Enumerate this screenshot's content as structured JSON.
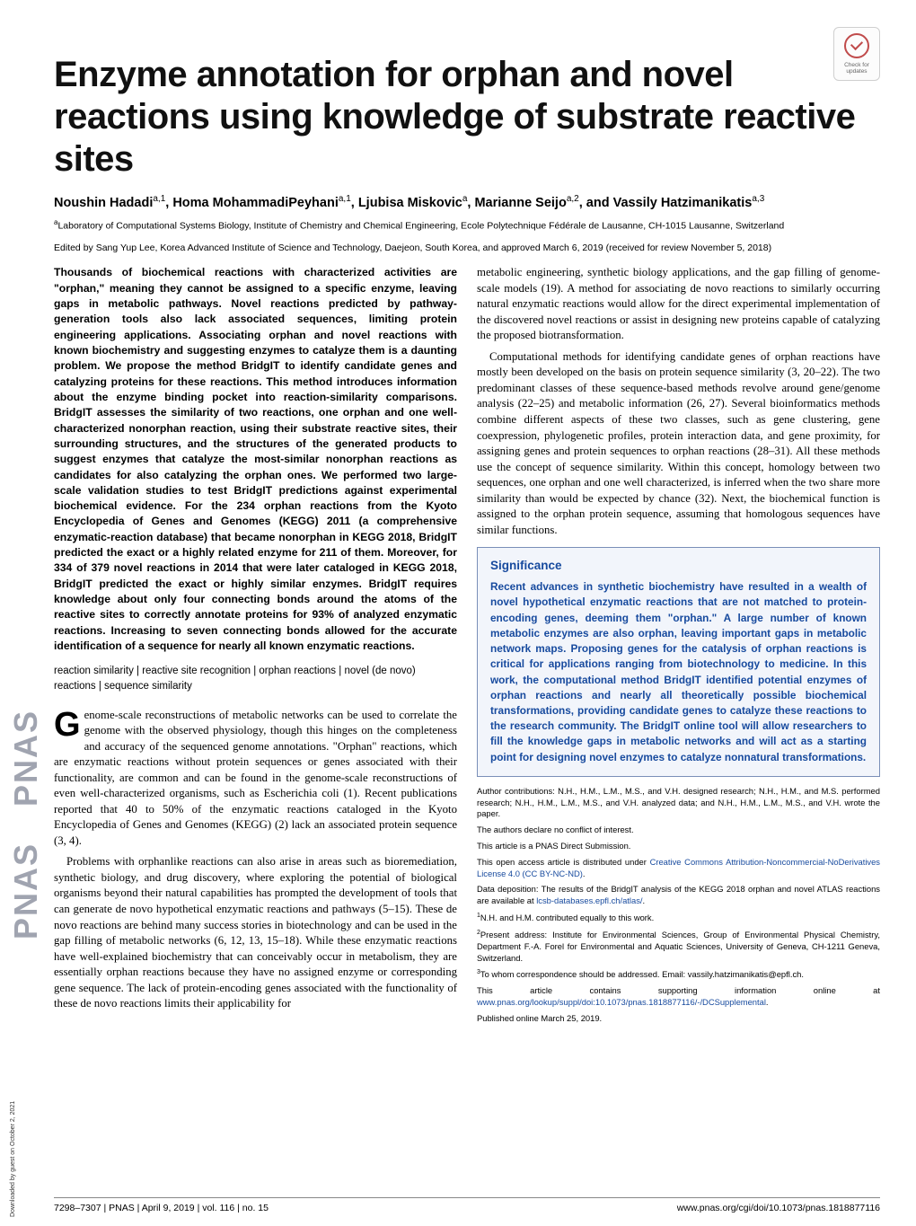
{
  "journal_vertical": "PNAS PNAS",
  "downloaded_note": "Downloaded by guest on October 2, 2021",
  "updates_badge": {
    "line1": "Check for",
    "line2": "updates"
  },
  "title": "Enzyme annotation for orphan and novel reactions using knowledge of substrate reactive sites",
  "authors_html": "Noushin Hadadi<sup>a,1</sup>, Homa MohammadiPeyhani<sup>a,1</sup>, Ljubisa Miskovic<sup>a</sup>, Marianne Seijo<sup>a,2</sup>, and Vassily Hatzimanikatis<sup>a,3</sup>",
  "affiliation_html": "<sup>a</sup>Laboratory of Computational Systems Biology, Institute of Chemistry and Chemical Engineering, Ecole Polytechnique Fédérale de Lausanne, CH-1015 Lausanne, Switzerland",
  "edited": "Edited by Sang Yup Lee, Korea Advanced Institute of Science and Technology, Daejeon, South Korea, and approved March 6, 2019 (received for review November 5, 2018)",
  "abstract": "Thousands of biochemical reactions with characterized activities are \"orphan,\" meaning they cannot be assigned to a specific enzyme, leaving gaps in metabolic pathways. Novel reactions predicted by pathway-generation tools also lack associated sequences, limiting protein engineering applications. Associating orphan and novel reactions with known biochemistry and suggesting enzymes to catalyze them is a daunting problem. We propose the method BridgIT to identify candidate genes and catalyzing proteins for these reactions. This method introduces information about the enzyme binding pocket into reaction-similarity comparisons. BridgIT assesses the similarity of two reactions, one orphan and one well-characterized nonorphan reaction, using their substrate reactive sites, their surrounding structures, and the structures of the generated products to suggest enzymes that catalyze the most-similar nonorphan reactions as candidates for also catalyzing the orphan ones. We performed two large-scale validation studies to test BridgIT predictions against experimental biochemical evidence. For the 234 orphan reactions from the Kyoto Encyclopedia of Genes and Genomes (KEGG) 2011 (a comprehensive enzymatic-reaction database) that became nonorphan in KEGG 2018, BridgIT predicted the exact or a highly related enzyme for 211 of them. Moreover, for 334 of 379 novel reactions in 2014 that were later cataloged in KEGG 2018, BridgIT predicted the exact or highly similar enzymes. BridgIT requires knowledge about only four connecting bonds around the atoms of the reactive sites to correctly annotate proteins for 93% of analyzed enzymatic reactions. Increasing to seven connecting bonds allowed for the accurate identification of a sequence for nearly all known enzymatic reactions.",
  "keywords": "reaction similarity | reactive site recognition | orphan reactions | novel (de novo) reactions | sequence similarity",
  "left_paras": [
    "enome-scale reconstructions of metabolic networks can be used to correlate the genome with the observed physiology, though this hinges on the completeness and accuracy of the sequenced genome annotations. \"Orphan\" reactions, which are enzymatic reactions without protein sequences or genes associated with their functionality, are common and can be found in the genome-scale reconstructions of even well-characterized organisms, such as Escherichia coli (1). Recent publications reported that 40 to 50% of the enzymatic reactions cataloged in the Kyoto Encyclopedia of Genes and Genomes (KEGG) (2) lack an associated protein sequence (3, 4).",
    "Problems with orphanlike reactions can also arise in areas such as bioremediation, synthetic biology, and drug discovery, where exploring the potential of biological organisms beyond their natural capabilities has prompted the development of tools that can generate de novo hypothetical enzymatic reactions and pathways (5–15). These de novo reactions are behind many success stories in biotechnology and can be used in the gap filling of metabolic networks (6, 12, 13, 15–18). While these enzymatic reactions have well-explained biochemistry that can conceivably occur in metabolism, they are essentially orphan reactions because they have no assigned enzyme or corresponding gene sequence. The lack of protein-encoding genes associated with the functionality of these de novo reactions limits their applicability for"
  ],
  "right_paras": [
    "metabolic engineering, synthetic biology applications, and the gap filling of genome-scale models (19). A method for associating de novo reactions to similarly occurring natural enzymatic reactions would allow for the direct experimental implementation of the discovered novel reactions or assist in designing new proteins capable of catalyzing the proposed biotransformation.",
    "Computational methods for identifying candidate genes of orphan reactions have mostly been developed on the basis on protein sequence similarity (3, 20–22). The two predominant classes of these sequence-based methods revolve around gene/genome analysis (22–25) and metabolic information (26, 27). Several bioinformatics methods combine different aspects of these two classes, such as gene clustering, gene coexpression, phylogenetic profiles, protein interaction data, and gene proximity, for assigning genes and protein sequences to orphan reactions (28–31). All these methods use the concept of sequence similarity. Within this concept, homology between two sequences, one orphan and one well characterized, is inferred when the two share more similarity than would be expected by chance (32). Next, the biochemical function is assigned to the orphan protein sequence, assuming that homologous sequences have similar functions."
  ],
  "significance": {
    "heading": "Significance",
    "body": "Recent advances in synthetic biochemistry have resulted in a wealth of novel hypothetical enzymatic reactions that are not matched to protein-encoding genes, deeming them \"orphan.\" A large number of known metabolic enzymes are also orphan, leaving important gaps in metabolic network maps. Proposing genes for the catalysis of orphan reactions is critical for applications ranging from biotechnology to medicine. In this work, the computational method BridgIT identified potential enzymes of orphan reactions and nearly all theoretically possible biochemical transformations, providing candidate genes to catalyze these reactions to the research community. The BridgIT online tool will allow researchers to fill the knowledge gaps in metabolic networks and will act as a starting point for designing novel enzymes to catalyze nonnatural transformations."
  },
  "footnotes": {
    "contrib": "Author contributions: N.H., H.M., L.M., M.S., and V.H. designed research; N.H., H.M., and M.S. performed research; N.H., H.M., L.M., M.S., and V.H. analyzed data; and N.H., H.M., L.M., M.S., and V.H. wrote the paper.",
    "coi": "The authors declare no conflict of interest.",
    "direct": "This article is a PNAS Direct Submission.",
    "license_pre": "This open access article is distributed under ",
    "license_link": "Creative Commons Attribution-Noncommercial-NoDerivatives License 4.0 (CC BY-NC-ND)",
    "license_post": ".",
    "datadep_pre": "Data deposition: The results of the BridgIT analysis of the KEGG 2018 orphan and novel ATLAS reactions are available at ",
    "datadep_link": "lcsb-databases.epfl.ch/atlas/",
    "datadep_post": ".",
    "equal": "N.H. and H.M. contributed equally to this work.",
    "present": "Present address: Institute for Environmental Sciences, Group of Environmental Physical Chemistry, Department F.-A. Forel for Environmental and Aquatic Sciences, University of Geneva, CH-1211 Geneva, Switzerland.",
    "corr": "To whom correspondence should be addressed. Email: vassily.hatzimanikatis@epfl.ch.",
    "supp_pre": "This article contains supporting information online at ",
    "supp_link": "www.pnas.org/lookup/suppl/doi:10.1073/pnas.1818877116/-/DCSupplemental",
    "supp_post": ".",
    "published": "Published online March 25, 2019."
  },
  "footer": {
    "left": "7298–7307  |  PNAS  |  April 9, 2019  |  vol. 116  |  no. 15",
    "right": "www.pnas.org/cgi/doi/10.1073/pnas.1818877116"
  },
  "colors": {
    "link": "#174a9e",
    "sig_border": "#7a8fb8",
    "sig_bg": "#f2f5fb",
    "pnas_gray": "#a0a4b0",
    "badge_red": "#c04b4b"
  },
  "typography": {
    "title_pt": 40,
    "authors_pt": 14.5,
    "abstract_pt": 12.2,
    "body_pt": 12.8,
    "foot_pt": 9.4,
    "sig_heading_pt": 13.5,
    "sig_body_pt": 11.8
  }
}
